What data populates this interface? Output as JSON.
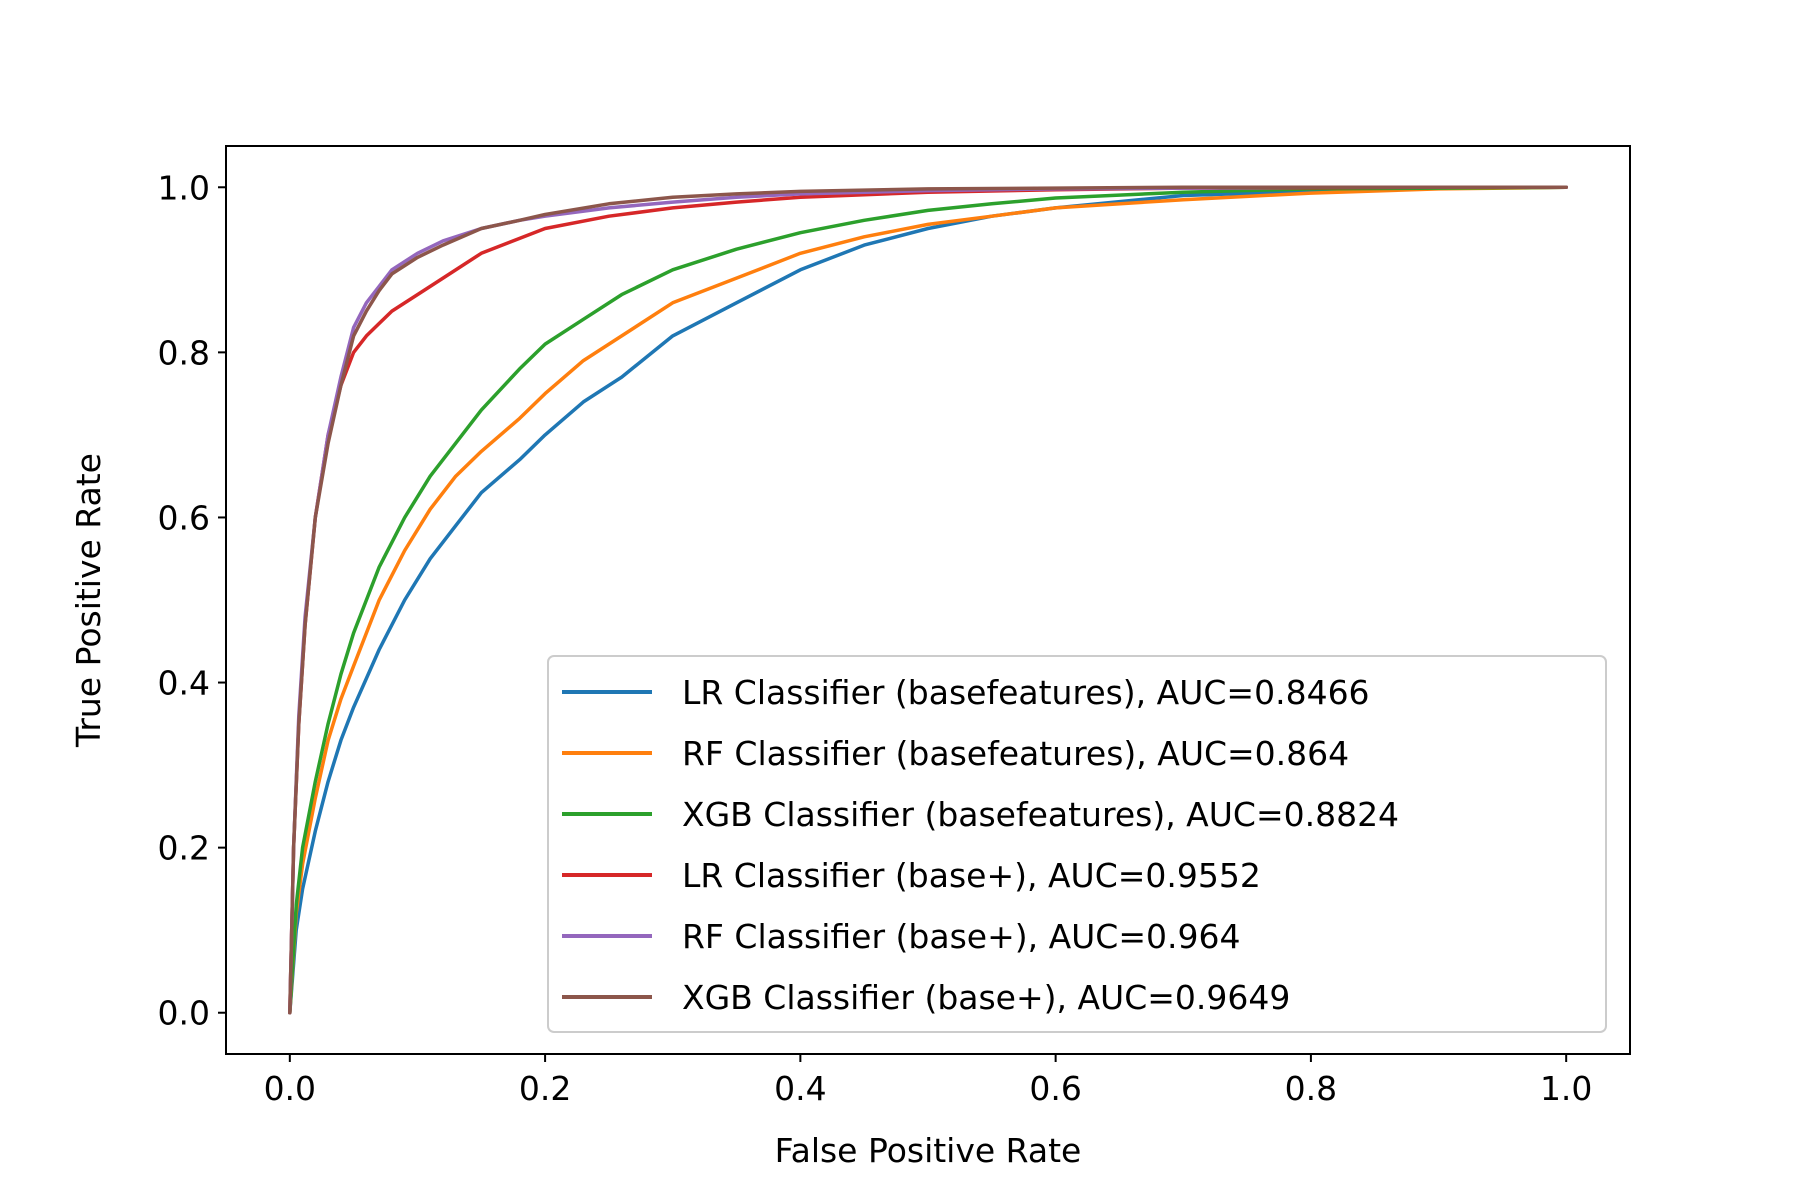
{
  "chart_data": {
    "type": "line",
    "title": "",
    "xlabel": "False Positive Rate",
    "ylabel": "True Positive Rate",
    "xlim": [
      -0.05,
      1.05
    ],
    "ylim": [
      -0.05,
      1.05
    ],
    "xticks": [
      0.0,
      0.2,
      0.4,
      0.6,
      0.8,
      1.0
    ],
    "xtick_labels": [
      "0.0",
      "0.2",
      "0.4",
      "0.6",
      "0.8",
      "1.0"
    ],
    "yticks": [
      0.0,
      0.2,
      0.4,
      0.6,
      0.8,
      1.0
    ],
    "ytick_labels": [
      "0.0",
      "0.2",
      "0.4",
      "0.6",
      "0.8",
      "1.0"
    ],
    "grid": false,
    "legend_position": "lower-right",
    "series": [
      {
        "name": "LR Classifier (basefeatures), AUC=0.8466",
        "color": "#1f77b4",
        "x": [
          0,
          0.005,
          0.01,
          0.02,
          0.03,
          0.04,
          0.05,
          0.07,
          0.09,
          0.11,
          0.13,
          0.15,
          0.18,
          0.2,
          0.23,
          0.26,
          0.3,
          0.35,
          0.4,
          0.45,
          0.5,
          0.55,
          0.6,
          0.7,
          0.8,
          0.9,
          1.0
        ],
        "y": [
          0,
          0.1,
          0.15,
          0.22,
          0.28,
          0.33,
          0.37,
          0.44,
          0.5,
          0.55,
          0.59,
          0.63,
          0.67,
          0.7,
          0.74,
          0.77,
          0.82,
          0.86,
          0.9,
          0.93,
          0.95,
          0.965,
          0.975,
          0.99,
          0.995,
          0.999,
          1.0
        ]
      },
      {
        "name": "RF Classifier (basefeatures), AUC=0.864",
        "color": "#ff7f0e",
        "x": [
          0,
          0.005,
          0.01,
          0.02,
          0.03,
          0.04,
          0.05,
          0.07,
          0.09,
          0.11,
          0.13,
          0.15,
          0.18,
          0.2,
          0.23,
          0.26,
          0.3,
          0.35,
          0.4,
          0.45,
          0.5,
          0.55,
          0.6,
          0.7,
          0.8,
          0.9,
          1.0
        ],
        "y": [
          0,
          0.12,
          0.18,
          0.26,
          0.33,
          0.38,
          0.42,
          0.5,
          0.56,
          0.61,
          0.65,
          0.68,
          0.72,
          0.75,
          0.79,
          0.82,
          0.86,
          0.89,
          0.92,
          0.94,
          0.955,
          0.965,
          0.975,
          0.985,
          0.993,
          0.998,
          1.0
        ]
      },
      {
        "name": "XGB Classifier (basefeatures), AUC=0.8824",
        "color": "#2ca02c",
        "x": [
          0,
          0.005,
          0.01,
          0.02,
          0.03,
          0.04,
          0.05,
          0.07,
          0.09,
          0.11,
          0.13,
          0.15,
          0.18,
          0.2,
          0.23,
          0.26,
          0.3,
          0.35,
          0.4,
          0.45,
          0.5,
          0.55,
          0.6,
          0.7,
          0.8,
          0.9,
          1.0
        ],
        "y": [
          0,
          0.13,
          0.2,
          0.28,
          0.35,
          0.41,
          0.46,
          0.54,
          0.6,
          0.65,
          0.69,
          0.73,
          0.78,
          0.81,
          0.84,
          0.87,
          0.9,
          0.925,
          0.945,
          0.96,
          0.972,
          0.98,
          0.987,
          0.994,
          0.998,
          0.999,
          1.0
        ]
      },
      {
        "name": "LR Classifier (base+), AUC=0.9552",
        "color": "#d62728",
        "x": [
          0,
          0.003,
          0.007,
          0.012,
          0.02,
          0.03,
          0.04,
          0.05,
          0.06,
          0.08,
          0.1,
          0.12,
          0.15,
          0.2,
          0.25,
          0.3,
          0.35,
          0.4,
          0.5,
          0.6,
          0.7,
          0.8,
          0.9,
          1.0
        ],
        "y": [
          0,
          0.2,
          0.35,
          0.47,
          0.6,
          0.7,
          0.76,
          0.8,
          0.82,
          0.85,
          0.87,
          0.89,
          0.92,
          0.95,
          0.965,
          0.975,
          0.982,
          0.988,
          0.994,
          0.997,
          0.999,
          0.9995,
          1.0,
          1.0
        ]
      },
      {
        "name": "RF Classifier (base+), AUC=0.964",
        "color": "#9467bd",
        "x": [
          0,
          0.003,
          0.007,
          0.012,
          0.02,
          0.03,
          0.04,
          0.05,
          0.06,
          0.07,
          0.08,
          0.1,
          0.12,
          0.15,
          0.18,
          0.2,
          0.25,
          0.3,
          0.35,
          0.4,
          0.5,
          0.6,
          0.7,
          0.8,
          1.0
        ],
        "y": [
          0,
          0.2,
          0.36,
          0.48,
          0.6,
          0.7,
          0.77,
          0.83,
          0.86,
          0.88,
          0.9,
          0.92,
          0.935,
          0.95,
          0.96,
          0.965,
          0.975,
          0.982,
          0.988,
          0.992,
          0.996,
          0.998,
          0.999,
          1.0,
          1.0
        ]
      },
      {
        "name": "XGB Classifier (base+), AUC=0.9649",
        "color": "#8c564b",
        "x": [
          0,
          0.003,
          0.007,
          0.012,
          0.02,
          0.03,
          0.04,
          0.05,
          0.06,
          0.07,
          0.08,
          0.1,
          0.12,
          0.15,
          0.18,
          0.2,
          0.25,
          0.3,
          0.35,
          0.4,
          0.5,
          0.6,
          0.7,
          0.8,
          1.0
        ],
        "y": [
          0,
          0.2,
          0.35,
          0.47,
          0.6,
          0.69,
          0.76,
          0.82,
          0.85,
          0.875,
          0.895,
          0.915,
          0.93,
          0.95,
          0.96,
          0.967,
          0.98,
          0.988,
          0.992,
          0.995,
          0.998,
          0.999,
          1.0,
          1.0,
          1.0
        ]
      }
    ]
  }
}
